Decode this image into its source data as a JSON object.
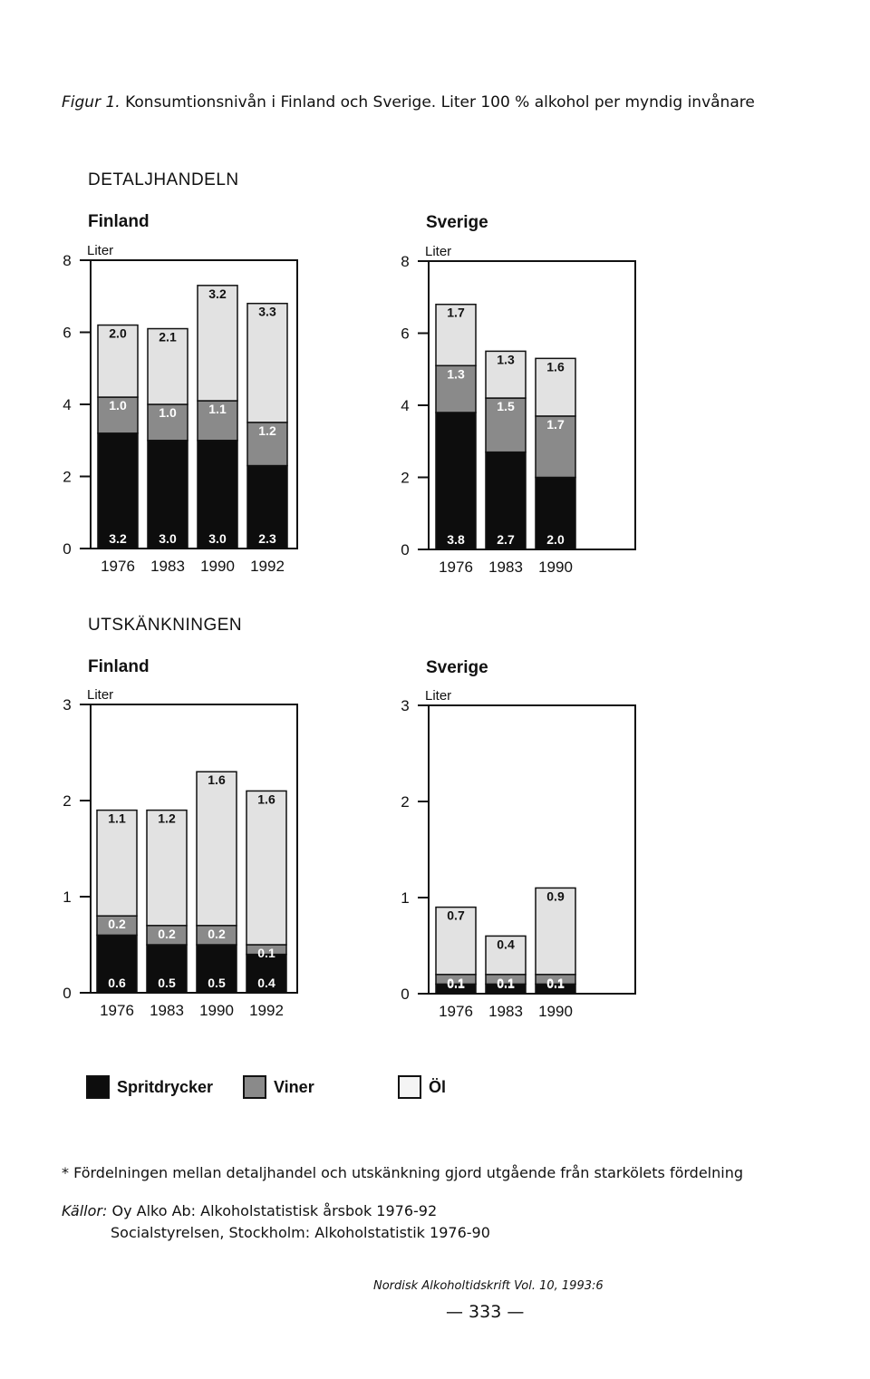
{
  "caption": {
    "lead": "Figur 1.",
    "text": "Konsumtionsnivån i Finland och Sverige. Liter 100 % alkohol per myndig invånare"
  },
  "sections": {
    "retail": "DETALJHANDELN",
    "onpremise": "UTSKÄNKNINGEN"
  },
  "legend": {
    "spirits": "Spritdrycker",
    "wine": "Viner",
    "beer": "Öl"
  },
  "colors": {
    "spirits": "#0d0d0d",
    "wine": "#8a8a8a",
    "beer": "#e2e2e2"
  },
  "footnote": "* Fördelningen mellan detaljhandel och utskänkning gjord utgående från starkölets fördelning",
  "sources": {
    "label": "Källor:",
    "line1": "Oy Alko Ab: Alkoholstatistisk årsbok 1976-92",
    "line2": "Socialstyrelsen, Stockholm: Alkoholstatistik 1976-90"
  },
  "journal": "Nordisk Alkoholtidskrift Vol. 10, 1993:6",
  "page_number": "— 333 —",
  "chart_data": [
    {
      "type": "bar",
      "stacked": true,
      "title": "Finland",
      "ylabel": "Liter",
      "ylim": [
        0,
        8
      ],
      "yticks": [
        0,
        2,
        4,
        6,
        8
      ],
      "categories": [
        "1976",
        "1983",
        "1990",
        "1992"
      ],
      "series": [
        {
          "name": "Spritdrycker",
          "values": [
            3.2,
            3.0,
            3.0,
            2.3
          ]
        },
        {
          "name": "Viner",
          "values": [
            1.0,
            1.0,
            1.1,
            1.2
          ]
        },
        {
          "name": "Öl",
          "values": [
            2.0,
            2.1,
            3.2,
            3.3
          ]
        }
      ]
    },
    {
      "type": "bar",
      "stacked": true,
      "title": "Sverige",
      "ylabel": "Liter",
      "ylim": [
        0,
        8
      ],
      "yticks": [
        0,
        2,
        4,
        6,
        8
      ],
      "categories": [
        "1976",
        "1983",
        "1990"
      ],
      "series": [
        {
          "name": "Spritdrycker",
          "values": [
            3.8,
            2.7,
            2.0
          ]
        },
        {
          "name": "Viner",
          "values": [
            1.3,
            1.5,
            1.7
          ]
        },
        {
          "name": "Öl",
          "values": [
            1.7,
            1.3,
            1.6
          ]
        }
      ]
    },
    {
      "type": "bar",
      "stacked": true,
      "title": "Finland",
      "ylabel": "Liter",
      "ylim": [
        0,
        3
      ],
      "yticks": [
        0,
        1,
        2,
        3
      ],
      "categories": [
        "1976",
        "1983",
        "1990",
        "1992"
      ],
      "series": [
        {
          "name": "Spritdrycker",
          "values": [
            0.6,
            0.5,
            0.5,
            0.4
          ]
        },
        {
          "name": "Viner",
          "values": [
            0.2,
            0.2,
            0.2,
            0.1
          ]
        },
        {
          "name": "Öl",
          "values": [
            1.1,
            1.2,
            1.6,
            1.6
          ]
        }
      ]
    },
    {
      "type": "bar",
      "stacked": true,
      "title": "Sverige",
      "ylabel": "Liter",
      "ylim": [
        0,
        3
      ],
      "yticks": [
        0,
        1,
        2,
        3
      ],
      "categories": [
        "1976",
        "1983",
        "1990"
      ],
      "series": [
        {
          "name": "Spritdrycker",
          "values": [
            0.1,
            0.1,
            0.1
          ]
        },
        {
          "name": "Viner",
          "values": [
            0.1,
            0.1,
            0.1
          ]
        },
        {
          "name": "Öl",
          "values": [
            0.7,
            0.4,
            0.9
          ]
        }
      ]
    }
  ]
}
